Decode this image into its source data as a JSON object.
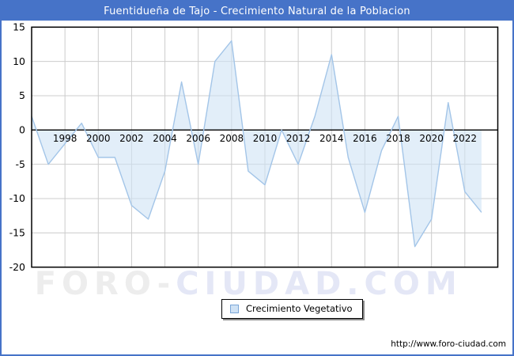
{
  "window": {
    "title": "Fuentidueña de Tajo - Crecimiento Natural de la Poblacion"
  },
  "legend": {
    "label": "Crecimiento Vegetativo"
  },
  "watermark": {
    "part1": "FORO-",
    "part2": "CIUDAD.COM"
  },
  "footer": {
    "url": "http://www.foro-ciudad.com"
  },
  "colors": {
    "frame_blue": "#4673c8",
    "title_text": "#ffffff",
    "line": "#a3c5e8",
    "fill": "#cfe2f5",
    "grid": "#cccccc",
    "axis": "#000000",
    "watermark_gray": "#ededed",
    "watermark_blue": "#e4e7f6"
  },
  "chart_data": {
    "type": "area",
    "title": "Fuentidueña de Tajo - Crecimiento Natural de la Poblacion",
    "x": [
      1996,
      1997,
      1998,
      1999,
      2000,
      2001,
      2002,
      2003,
      2004,
      2005,
      2006,
      2007,
      2008,
      2009,
      2010,
      2011,
      2012,
      2013,
      2014,
      2015,
      2016,
      2017,
      2018,
      2019,
      2020,
      2021,
      2022,
      2023
    ],
    "series": [
      {
        "name": "Crecimiento Vegetativo",
        "values": [
          2,
          -5,
          -2,
          1,
          -4,
          -4,
          -11,
          -13,
          -6,
          7,
          -5,
          10,
          13,
          -6,
          -8,
          0,
          -5,
          2,
          11,
          -4,
          -12,
          -3,
          2,
          -17,
          -13,
          4,
          -9,
          -12
        ]
      }
    ],
    "ylim": [
      -20,
      15
    ],
    "yticks": [
      15,
      10,
      5,
      0,
      -5,
      -10,
      -15,
      -20
    ],
    "xticks": [
      1998,
      2000,
      2002,
      2004,
      2006,
      2008,
      2010,
      2012,
      2014,
      2016,
      2018,
      2020,
      2022
    ],
    "baseline": 0,
    "grid": true,
    "legend_position": "bottom-center",
    "xlabel": "",
    "ylabel": ""
  }
}
